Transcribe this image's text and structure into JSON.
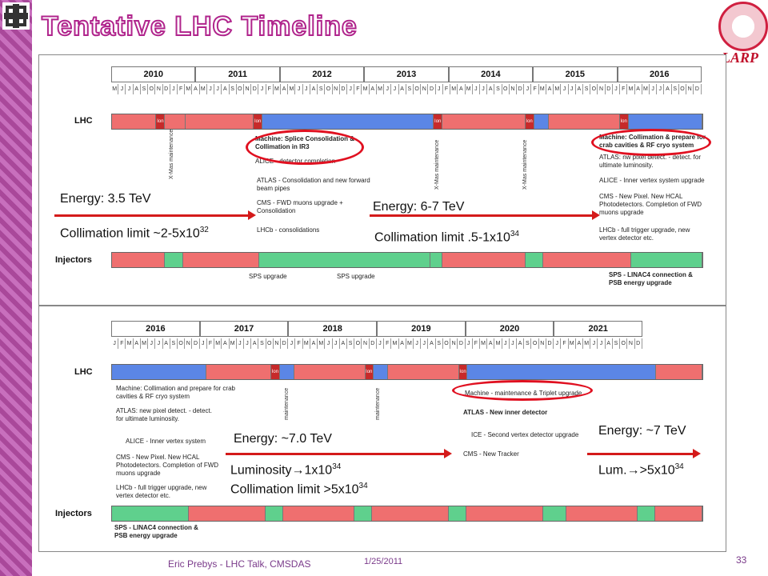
{
  "title": "Tentative LHC Timeline",
  "logo_text": "LARP",
  "top": {
    "years": [
      "2010",
      "2011",
      "2012",
      "2013",
      "2014",
      "2015",
      "2016"
    ],
    "months": [
      "M",
      "J",
      "J",
      "A",
      "S",
      "O",
      "N",
      "D",
      "J",
      "F",
      "M",
      "A",
      "M",
      "J",
      "J",
      "A",
      "S",
      "O",
      "N",
      "D",
      "J",
      "F",
      "M",
      "A",
      "M",
      "J",
      "J",
      "A",
      "S",
      "O",
      "N",
      "D",
      "J",
      "F",
      "M",
      "A",
      "M",
      "J",
      "J",
      "A",
      "S",
      "O",
      "N",
      "D",
      "J",
      "F",
      "M",
      "A",
      "M",
      "J",
      "J",
      "A",
      "S",
      "O",
      "N",
      "D",
      "J",
      "F",
      "M",
      "A",
      "M",
      "J",
      "J",
      "A",
      "S",
      "O",
      "N",
      "D",
      "J",
      "F",
      "M",
      "A",
      "M",
      "J",
      "J",
      "A",
      "S",
      "O",
      "N",
      "D"
    ],
    "lhc_label": "LHC",
    "injectors_label": "Injectors",
    "ion": "Ion",
    "xmas": "X-Mas maintenance",
    "xmas2": "X-Mas maintenance",
    "notes": {
      "machine": "Machine: Splice Consolidation & Collimation in IR3",
      "alice": "ALICE - detector completion",
      "atlas": "ATLAS - Consolidation and new forward beam pipes",
      "cms": "CMS - FWD muons upgrade + Consolidation",
      "lhcb": "LHCb - consolidations",
      "machine2": "Machine: Collimation & prepare for crab cavities & RF cryo system",
      "atlas2": "ATLAS: nw pixel detect. - detect. for ultimate luminosity.",
      "alice2": "ALICE - Inner vertex system upgrade",
      "cms2": "CMS - New Pixel. New HCAL Photodetectors. Completion of FWD muons upgrade",
      "lhcb2": "LHCb - full trigger upgrade, new vertex detector etc.",
      "sps1": "SPS upgrade",
      "sps2": "SPS upgrade",
      "sps3": "SPS - LINAC4 connection & PSB energy upgrade"
    },
    "energy1": "Energy: 3.5 TeV",
    "collim1": "Collimation limit ~2-5x10",
    "collim1_exp": "32",
    "energy2": "Energy: 6-7 TeV",
    "collim2": "Collimation limit .5-1x10",
    "collim2_exp": "34"
  },
  "bottom": {
    "years": [
      "2016",
      "2017",
      "2018",
      "2019",
      "2020",
      "2021"
    ],
    "months": [
      "J",
      "F",
      "M",
      "A",
      "M",
      "J",
      "J",
      "A",
      "S",
      "O",
      "N",
      "D",
      "J",
      "F",
      "M",
      "A",
      "M",
      "J",
      "J",
      "A",
      "S",
      "O",
      "N",
      "D",
      "J",
      "F",
      "M",
      "A",
      "M",
      "J",
      "J",
      "A",
      "S",
      "O",
      "N",
      "D",
      "J",
      "F",
      "M",
      "A",
      "M",
      "J",
      "J",
      "A",
      "S",
      "O",
      "N",
      "D",
      "J",
      "F",
      "M",
      "A",
      "M",
      "J",
      "J",
      "A",
      "S",
      "O",
      "N",
      "D",
      "J",
      "F",
      "M",
      "A",
      "M",
      "J",
      "J",
      "A",
      "S",
      "O",
      "N",
      "D"
    ],
    "lhc_label": "LHC",
    "injectors_label": "Injectors",
    "ion": "Ion",
    "maint": "maintenance",
    "notes": {
      "machine": "Machine: Collimation and prepare for crab cavities & RF cryo system",
      "atlas": "ATLAS: new pixel detect. - detect. for ultimate luminosity.",
      "alice": "ALICE - Inner vertex system",
      "cms": "CMS - New Pixel. New HCAL Photodetectors. Completion of FWD muons upgrade",
      "lhcb": "LHCb - full trigger upgrade, new vertex detector etc.",
      "machine2": "Machine - maintenance & Triplet upgrade",
      "atlas2": "ATLAS - New inner detector",
      "ice": "ICE - Second vertex detector upgrade",
      "cms2": "CMS - New Tracker",
      "sps": "SPS - LINAC4 connection & PSB energy upgrade"
    },
    "energy3": "Energy: ~7.0 TeV",
    "lumi3": "Luminosity",
    "lumi3_arrow": "→",
    "lumi3_val": "1x10",
    "lumi3_exp": "34",
    "collim3": "Collimation limit >5x10",
    "collim3_exp": "34",
    "energy4": "Energy: ~7 TeV",
    "lumi4": "Lum.",
    "lumi4_arrow": "→",
    "lumi4_val": ">5x10",
    "lumi4_exp": "34"
  },
  "footer": {
    "author": "Eric Prebys - LHC Talk, CMSDAS",
    "date": "1/25/2011",
    "page": "33"
  },
  "colors": {
    "accent": "#b0248c",
    "arrow": "#d41a1a",
    "lhc_run": "#ef6f6f",
    "shutdown": "#5b86e6",
    "injector_run": "#5fd08d"
  }
}
